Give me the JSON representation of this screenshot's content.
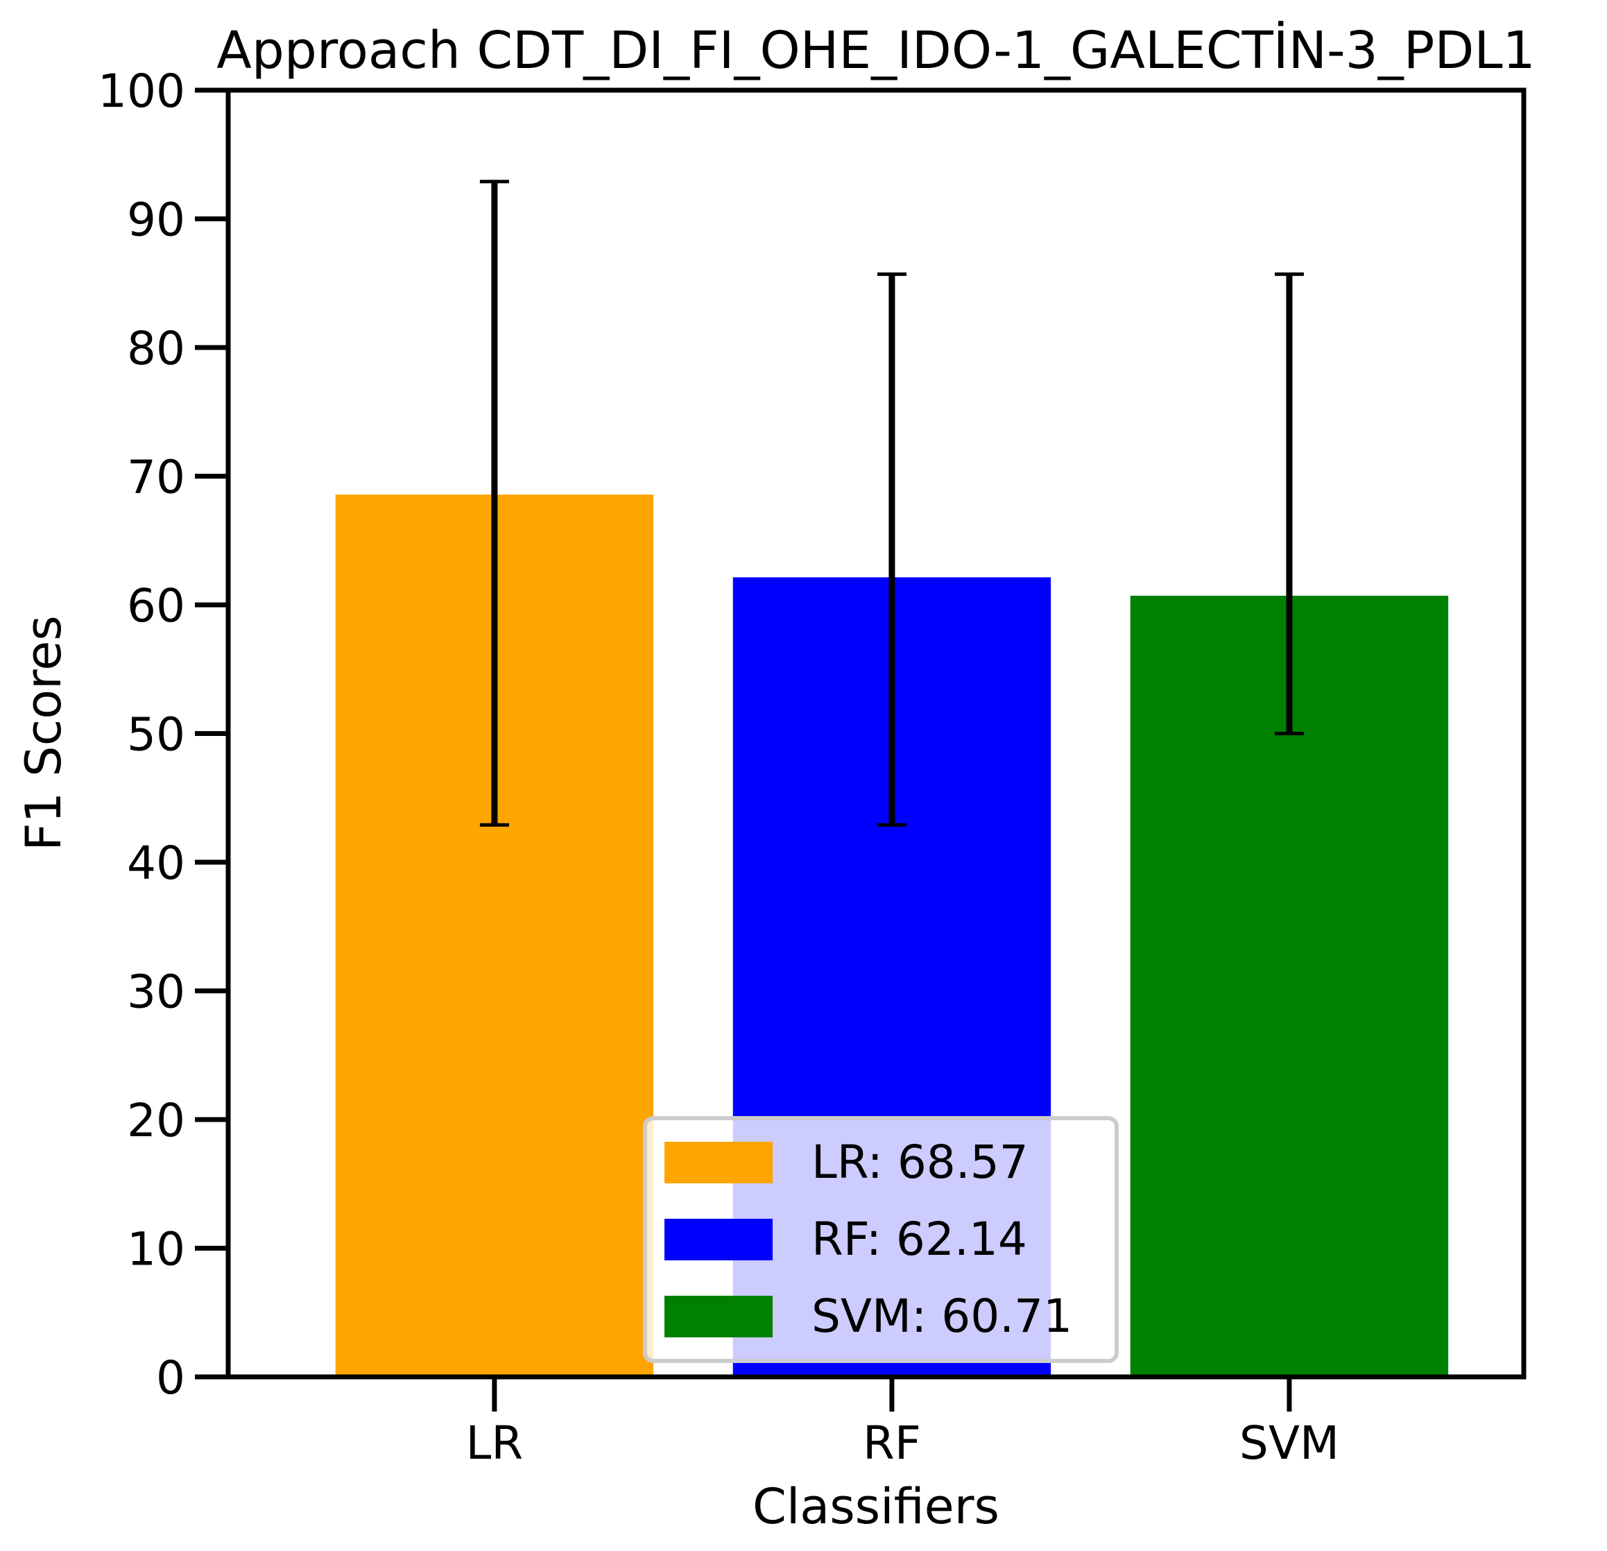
{
  "chart_data": {
    "type": "bar",
    "title": "Approach CDT_DI_FI_OHE_IDO-1_GALECTİN-3_PDL1",
    "xlabel": "Classifiers",
    "ylabel": "F1 Scores",
    "ylim": [
      0,
      100
    ],
    "yticks": [
      0,
      10,
      20,
      30,
      40,
      50,
      60,
      70,
      80,
      90,
      100
    ],
    "categories": [
      "LR",
      "RF",
      "SVM"
    ],
    "values": [
      68.57,
      62.14,
      60.71
    ],
    "error_low": [
      42.9,
      42.9,
      50.0
    ],
    "error_high": [
      92.9,
      85.7,
      85.7
    ],
    "colors": [
      "#FFA500",
      "#0000FF",
      "#008000"
    ],
    "grid": false,
    "legend": {
      "placement": "lower center",
      "entries": [
        "LR: 68.57",
        "RF: 62.14",
        "SVM: 60.71"
      ]
    }
  }
}
